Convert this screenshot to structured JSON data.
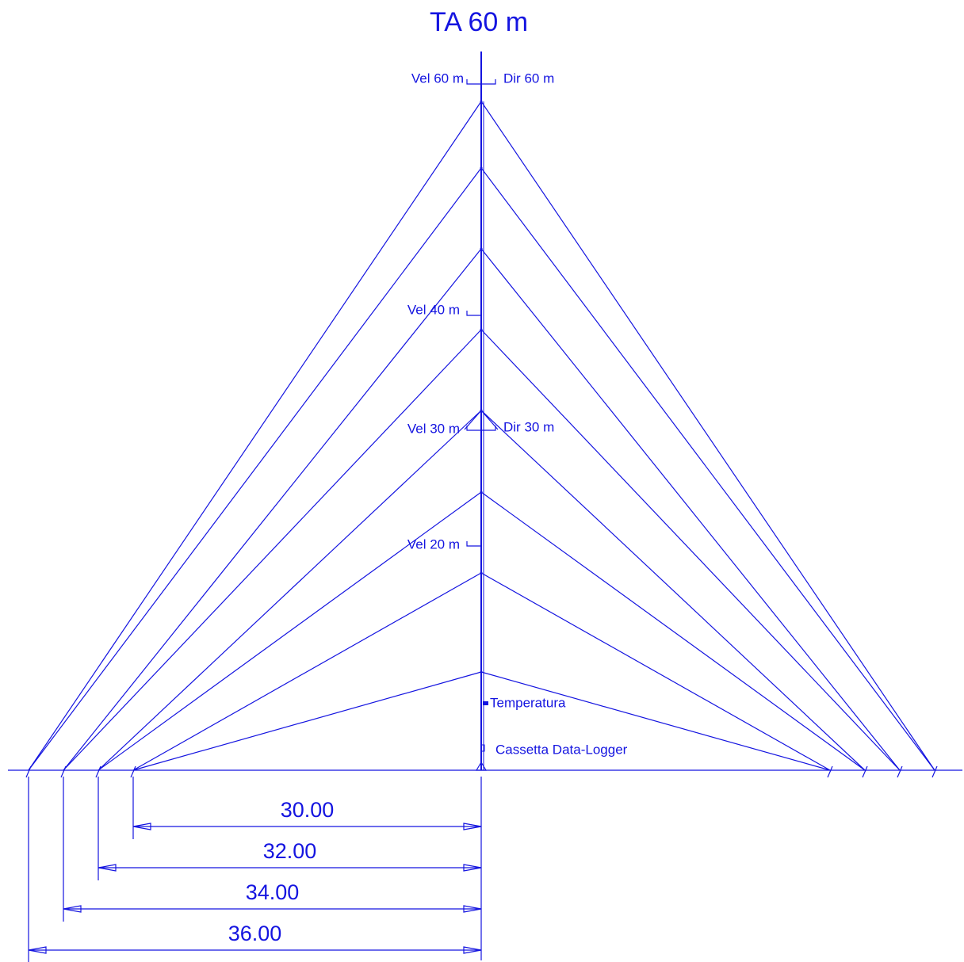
{
  "title": "TA 60 m",
  "sensors": {
    "vel60": "Vel 60 m",
    "dir60": "Dir 60 m",
    "vel40": "Vel 40 m",
    "vel30": "Vel 30 m",
    "dir30": "Dir 30 m",
    "vel20": "Vel 20 m",
    "temperature": "Temperatura",
    "logger": "Cassetta Data-Logger"
  },
  "dimensions": [
    "30.00",
    "32.00",
    "34.00",
    "36.00"
  ]
}
